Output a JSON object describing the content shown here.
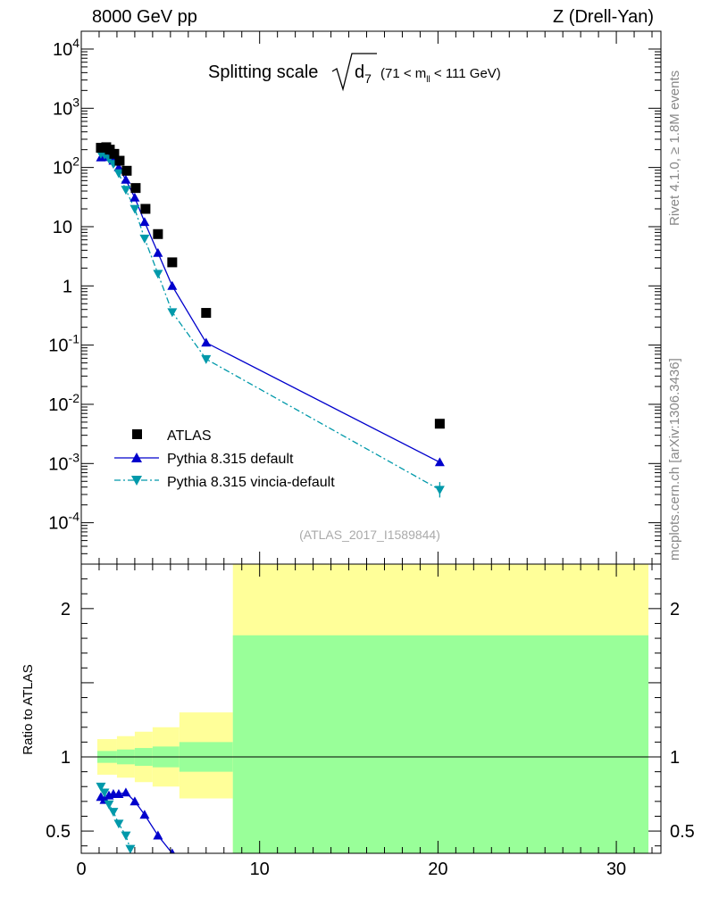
{
  "header": {
    "left": "8000 GeV pp",
    "right": "Z (Drell-Yan)"
  },
  "side": {
    "rivet": "Rivet 4.1.0, ≥ 1.8M events",
    "mcplots": "mcplots.cern.ch [arXiv:1306.3436]"
  },
  "title": {
    "main": "Splitting scale",
    "var": "d",
    "var_sub": "7",
    "range_pre": "(71 < m",
    "range_sub": "ll",
    "range_post": " < 111 GeV)"
  },
  "ratio_ylabel": "Ratio to ATLAS",
  "analysis_tag": "(ATLAS_2017_I1589844)",
  "legend": {
    "atlas": "ATLAS",
    "py_default": "Pythia 8.315 default",
    "py_vincia": "Pythia 8.315 vincia-default"
  },
  "chart_data": {
    "type": "scatter",
    "x_range": [
      0,
      32.5
    ],
    "x_ticks": [
      0,
      10,
      20,
      30
    ],
    "y_scale": "log",
    "y_range": [
      2e-05,
      20000
    ],
    "y_ticks": [
      {
        "v": 10000,
        "label": "10",
        "exp": "4"
      },
      {
        "v": 1000,
        "label": "10",
        "exp": "3"
      },
      {
        "v": 100,
        "label": "10",
        "exp": "2"
      },
      {
        "v": 10,
        "label": "10",
        "exp": ""
      },
      {
        "v": 1,
        "label": "1",
        "exp": ""
      },
      {
        "v": 0.1,
        "label": "10",
        "exp": "-1"
      },
      {
        "v": 0.01,
        "label": "10",
        "exp": "-2"
      },
      {
        "v": 0.001,
        "label": "10",
        "exp": "-3"
      },
      {
        "v": 0.0001,
        "label": "10",
        "exp": "-4"
      }
    ],
    "series": [
      {
        "name": "ATLAS",
        "color": "#000000",
        "marker": "square",
        "points": [
          [
            1.1,
            215
          ],
          [
            1.4,
            220
          ],
          [
            1.6,
            200
          ],
          [
            1.85,
            170
          ],
          [
            2.15,
            130
          ],
          [
            2.55,
            88
          ],
          [
            3.05,
            45
          ],
          [
            3.6,
            20
          ],
          [
            4.3,
            7.5
          ],
          [
            5.1,
            2.5
          ],
          [
            7.0,
            0.35
          ],
          [
            20.1,
            0.0047
          ]
        ]
      },
      {
        "name": "Pythia 8.315 default",
        "color": "#0000cc",
        "marker": "triangle-up",
        "line": "solid",
        "points": [
          [
            1.1,
            148
          ],
          [
            1.3,
            155
          ],
          [
            1.55,
            150
          ],
          [
            1.8,
            130
          ],
          [
            2.1,
            100
          ],
          [
            2.5,
            62
          ],
          [
            3.0,
            31
          ],
          [
            3.55,
            12
          ],
          [
            4.3,
            3.6
          ],
          [
            5.1,
            1.0
          ],
          [
            7.0,
            0.11
          ],
          [
            20.1,
            0.00105
          ]
        ]
      },
      {
        "name": "Pythia 8.315 vincia-default",
        "color": "#0099aa",
        "marker": "triangle-down",
        "line": "dash-dot",
        "points": [
          [
            1.1,
            170
          ],
          [
            1.3,
            165
          ],
          [
            1.55,
            140
          ],
          [
            1.8,
            115
          ],
          [
            2.1,
            80
          ],
          [
            2.5,
            42
          ],
          [
            3.0,
            20
          ],
          [
            3.55,
            6.3
          ],
          [
            4.3,
            1.6
          ],
          [
            5.1,
            0.36
          ],
          [
            7.0,
            0.058
          ],
          [
            20.1,
            0.00036
          ]
        ]
      }
    ],
    "ratio": {
      "y_range": [
        0.35,
        2.3
      ],
      "y_ticks": [
        0.5,
        1,
        2
      ],
      "band_bins": [
        {
          "x0": 0.9,
          "x1": 2.0,
          "stat": [
            0.96,
            1.04
          ],
          "total": [
            0.88,
            1.12
          ]
        },
        {
          "x0": 2.0,
          "x1": 3.0,
          "stat": [
            0.95,
            1.05
          ],
          "total": [
            0.86,
            1.14
          ]
        },
        {
          "x0": 3.0,
          "x1": 4.0,
          "stat": [
            0.94,
            1.06
          ],
          "total": [
            0.83,
            1.17
          ]
        },
        {
          "x0": 4.0,
          "x1": 5.5,
          "stat": [
            0.93,
            1.07
          ],
          "total": [
            0.8,
            1.2
          ]
        },
        {
          "x0": 5.5,
          "x1": 8.5,
          "stat": [
            0.9,
            1.1
          ],
          "total": [
            0.72,
            1.3
          ]
        },
        {
          "x0": 8.5,
          "x1": 31.8,
          "stat": [
            0.35,
            1.82
          ],
          "total": [
            0.35,
            2.3
          ]
        }
      ],
      "default": [
        [
          1.1,
          0.73
        ],
        [
          1.3,
          0.71
        ],
        [
          1.55,
          0.74
        ],
        [
          1.8,
          0.75
        ],
        [
          2.1,
          0.75
        ],
        [
          2.5,
          0.76
        ],
        [
          3.0,
          0.7
        ],
        [
          3.55,
          0.61
        ],
        [
          4.3,
          0.47
        ],
        [
          5.1,
          0.35
        ]
      ],
      "vincia": [
        [
          1.1,
          0.8
        ],
        [
          1.3,
          0.76
        ],
        [
          1.55,
          0.68
        ],
        [
          1.8,
          0.63
        ],
        [
          2.1,
          0.55
        ],
        [
          2.5,
          0.47
        ],
        [
          2.75,
          0.38
        ]
      ]
    }
  }
}
